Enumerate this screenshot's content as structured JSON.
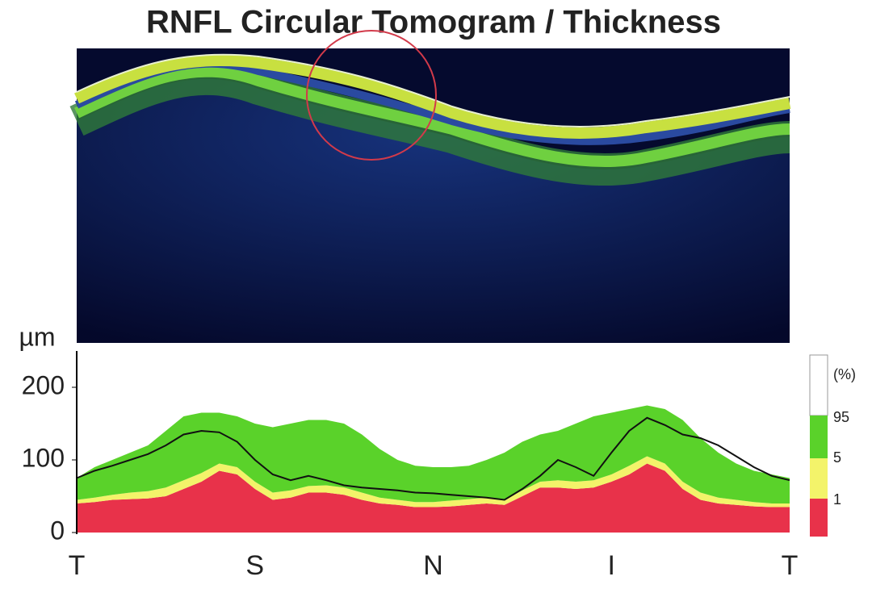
{
  "chart_data": {
    "type": "area",
    "title": "RNFL Circular Tomogram / Thickness",
    "ylabel": "µm",
    "categories": [
      "T",
      null,
      null,
      null,
      null,
      null,
      null,
      null,
      null,
      null,
      "S",
      null,
      null,
      null,
      null,
      null,
      null,
      null,
      null,
      null,
      "N",
      null,
      null,
      null,
      null,
      null,
      null,
      null,
      null,
      null,
      "I",
      null,
      null,
      null,
      null,
      null,
      null,
      null,
      null,
      null,
      "T"
    ],
    "ylim": [
      0,
      250
    ],
    "yticks": [
      0,
      100,
      200
    ],
    "series": [
      {
        "kind": "stacked",
        "color": "#e8324a",
        "values": [
          40,
          42,
          45,
          46,
          47,
          50,
          60,
          70,
          85,
          80,
          60,
          45,
          48,
          55,
          55,
          52,
          45,
          40,
          38,
          35,
          35,
          36,
          38,
          40,
          38,
          50,
          62,
          62,
          60,
          62,
          70,
          80,
          95,
          85,
          60,
          45,
          40,
          38,
          36,
          35,
          35
        ]
      },
      {
        "kind": "stacked",
        "color": "#f3f36a",
        "values": [
          5,
          6,
          7,
          9,
          10,
          12,
          12,
          12,
          10,
          10,
          10,
          10,
          10,
          9,
          10,
          10,
          10,
          8,
          7,
          7,
          7,
          8,
          8,
          8,
          7,
          8,
          8,
          10,
          10,
          10,
          10,
          12,
          10,
          10,
          10,
          10,
          8,
          7,
          6,
          5,
          5
        ]
      },
      {
        "kind": "stacked",
        "color": "#5ad22a",
        "values": [
          30,
          42,
          48,
          55,
          63,
          78,
          88,
          83,
          70,
          70,
          80,
          90,
          92,
          91,
          90,
          88,
          80,
          67,
          55,
          50,
          48,
          46,
          46,
          52,
          65,
          67,
          65,
          68,
          80,
          88,
          85,
          78,
          70,
          75,
          85,
          75,
          62,
          50,
          43,
          40,
          35
        ]
      },
      {
        "kind": "line",
        "color": "#111111",
        "values": [
          75,
          85,
          92,
          100,
          108,
          120,
          135,
          140,
          138,
          125,
          100,
          80,
          72,
          78,
          72,
          65,
          62,
          60,
          58,
          55,
          54,
          52,
          50,
          48,
          45,
          60,
          78,
          100,
          90,
          78,
          110,
          140,
          158,
          148,
          135,
          130,
          120,
          105,
          90,
          78,
          72
        ]
      }
    ],
    "legend": {
      "title": "(%)",
      "labels": [
        "95",
        "5",
        "1"
      ]
    }
  }
}
